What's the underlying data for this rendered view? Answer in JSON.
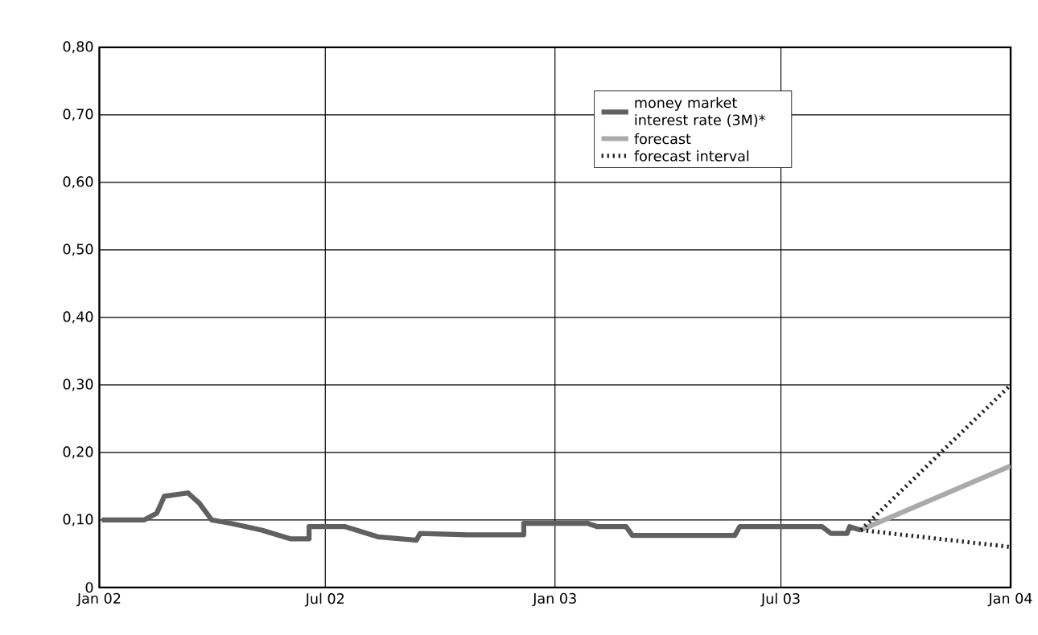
{
  "chart_data": {
    "type": "line",
    "legend": "top right",
    "grid": true,
    "marker": "none",
    "ylim": [
      0,
      0.8
    ],
    "yticks": [
      {
        "value": 0,
        "label": "0"
      },
      {
        "value": 0.1,
        "label": "0,10"
      },
      {
        "value": 0.2,
        "label": "0,20"
      },
      {
        "value": 0.3,
        "label": "0,30"
      },
      {
        "value": 0.4,
        "label": "0,40"
      },
      {
        "value": 0.5,
        "label": "0,50"
      },
      {
        "value": 0.6,
        "label": "0,60"
      },
      {
        "value": 0.7,
        "label": "0,70"
      },
      {
        "value": 0.8,
        "label": "0,80"
      }
    ],
    "xlim": [
      "2002-01-01",
      "2004-01-01"
    ],
    "xticks": [
      {
        "value": "2002-01-01",
        "label": "Jan 02"
      },
      {
        "value": "2002-07-01",
        "label": "Jul 02"
      },
      {
        "value": "2003-01-01",
        "label": "Jan 03"
      },
      {
        "value": "2003-07-01",
        "label": "Jul 03"
      },
      {
        "value": "2004-01-01",
        "label": "Jan 04"
      }
    ],
    "series": [
      {
        "name": "money market interest rate (3M)*",
        "color": "#606060",
        "line_style": "solid",
        "x": [
          "2002-01-03",
          "2002-02-06",
          "2002-02-16",
          "2002-02-22",
          "2002-03-13",
          "2002-03-22",
          "2002-04-01",
          "2002-04-16",
          "2002-05-11",
          "2002-06-03",
          "2002-06-18",
          "2002-06-18",
          "2002-07-17",
          "2002-08-12",
          "2002-09-12",
          "2002-09-15",
          "2002-10-23",
          "2002-12-07",
          "2002-12-07",
          "2003-01-27",
          "2003-02-04",
          "2003-02-27",
          "2003-03-04",
          "2003-05-25",
          "2003-05-29",
          "2003-08-03",
          "2003-08-10",
          "2003-08-23",
          "2003-08-25",
          "2003-09-03"
        ],
        "values": [
          0.1,
          0.1,
          0.11,
          0.135,
          0.14,
          0.125,
          0.1,
          0.095,
          0.085,
          0.072,
          0.072,
          0.09,
          0.09,
          0.075,
          0.07,
          0.08,
          0.078,
          0.078,
          0.095,
          0.095,
          0.09,
          0.09,
          0.077,
          0.077,
          0.09,
          0.09,
          0.08,
          0.08,
          0.09,
          0.085
        ]
      },
      {
        "name": "forecast",
        "color": "#aaaaaa",
        "line_style": "solid",
        "x": [
          "2003-09-03",
          "2004-01-01"
        ],
        "values": [
          0.085,
          0.18
        ]
      },
      {
        "name": "forecast interval",
        "color": "#222222",
        "line_style": "dotted",
        "x": [
          "2003-09-03",
          "2004-01-01"
        ],
        "values": [
          0.085,
          0.3
        ]
      },
      {
        "color": "#222222",
        "line_style": "dotted",
        "x": [
          "2003-09-03",
          "2004-01-01"
        ],
        "values": [
          0.085,
          0.06
        ]
      }
    ]
  }
}
